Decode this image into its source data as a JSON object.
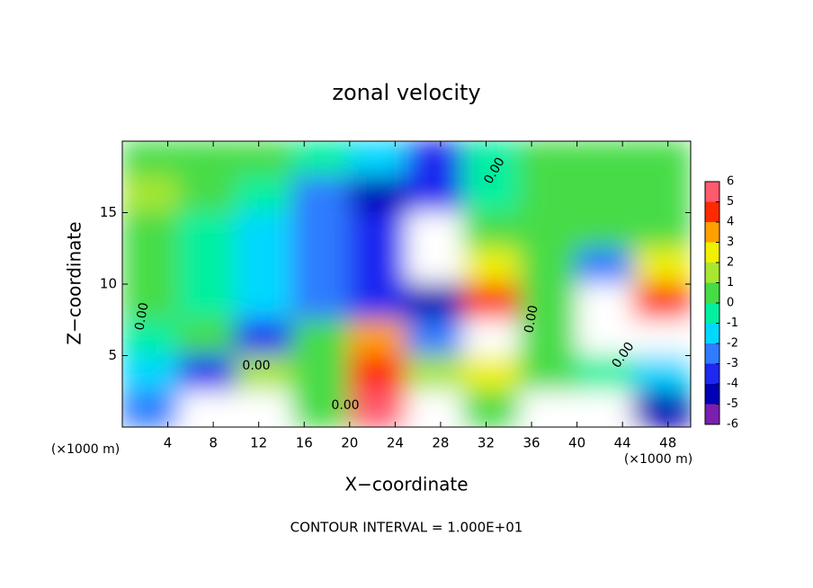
{
  "chart_data": {
    "type": "heatmap",
    "title": "zonal velocity",
    "x_label": "X−coordinate",
    "y_label": "Z−coordinate",
    "x_unit_labels": [
      "(×1000 m)",
      "(×1000 m)"
    ],
    "footer": "CONTOUR INTERVAL = 1.000E+01",
    "contour_labels": [
      "0.00",
      "0.00",
      "0.00",
      "0.00",
      "0.00",
      "0.00"
    ],
    "xlim": [
      0,
      50
    ],
    "ylim": [
      0,
      20
    ],
    "xticks": [
      4,
      8,
      12,
      16,
      20,
      24,
      28,
      32,
      36,
      40,
      44,
      48
    ],
    "yticks": [
      5,
      10,
      15
    ],
    "x_edges": [
      0,
      5,
      10,
      15,
      20,
      25,
      30,
      35,
      40,
      45,
      50
    ],
    "z_edges": [
      20,
      17.5,
      15,
      12.5,
      10,
      7.5,
      5,
      2.5,
      0
    ],
    "z": [
      [
        0,
        0,
        0.5,
        -1,
        -2,
        -3.5,
        -1,
        0,
        0,
        0.5
      ],
      [
        1,
        0,
        -1,
        -3,
        -4.5,
        -4,
        -1,
        0,
        0,
        0
      ],
      [
        0.5,
        -0.5,
        -2,
        -3,
        -4,
        -7,
        0,
        0,
        0,
        0.5
      ],
      [
        0,
        -1,
        -2,
        -2.5,
        -4,
        -7,
        2,
        0,
        -3,
        2
      ],
      [
        0,
        -1,
        -2,
        -3,
        -3.5,
        -5,
        4,
        0,
        -7,
        4
      ],
      [
        -1,
        0,
        -4,
        0,
        3,
        -3,
        7,
        0,
        -7,
        7
      ],
      [
        -2,
        -4,
        1,
        0,
        4,
        1,
        2,
        0,
        -1,
        -2
      ],
      [
        -3,
        7,
        7,
        0,
        5,
        7,
        0,
        -7,
        7,
        -5
      ]
    ],
    "colorbar": {
      "ticks": [
        -6,
        -5,
        -4,
        -3,
        -2,
        -1,
        0,
        1,
        2,
        3,
        4,
        5,
        6
      ],
      "colors": [
        "#7a1fb0",
        "#0000b4",
        "#1e28f0",
        "#2f7cff",
        "#00d8ff",
        "#00f0a0",
        "#46dc46",
        "#a8e632",
        "#f0f000",
        "#ffa000",
        "#ff2a00",
        "#ff5a6e"
      ],
      "out_of_range_color": "#ffffff"
    }
  }
}
